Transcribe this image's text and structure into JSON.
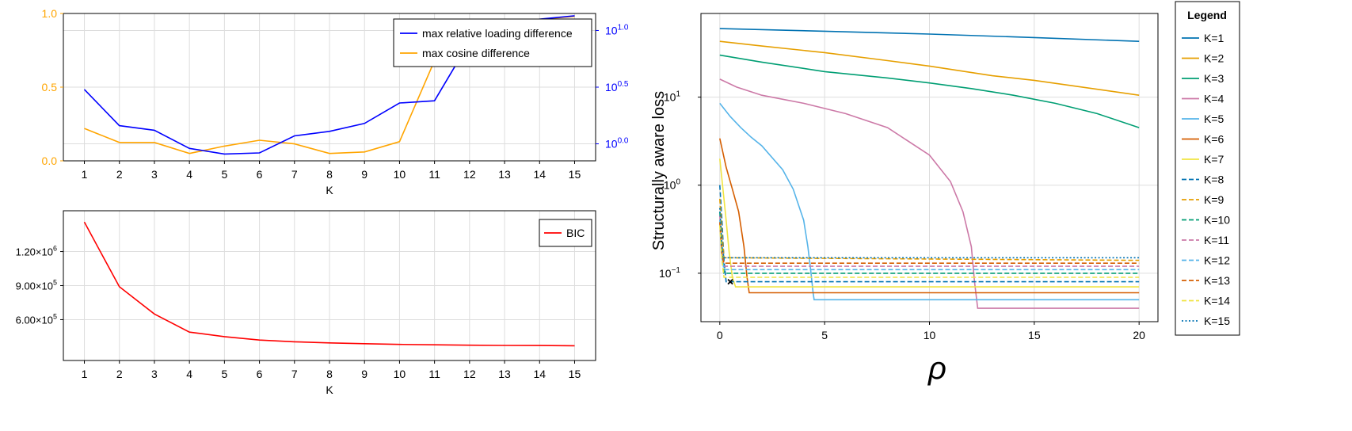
{
  "colors": {
    "loading": "#0000ff",
    "cosine": "#ffa500",
    "bic": "#ff0000",
    "grid": "#dddddd",
    "k_series": [
      "#0072b2",
      "#e69f00",
      "#009e73",
      "#cc79a7",
      "#56b4e9",
      "#d55e00",
      "#f0e442"
    ]
  },
  "chart_data": [
    {
      "type": "line",
      "xlabel": "K",
      "x": [
        1,
        2,
        3,
        4,
        5,
        6,
        7,
        8,
        9,
        10,
        11,
        12,
        13,
        14,
        15
      ],
      "xlim": [
        0.4,
        15.6
      ],
      "left_axis": {
        "ylim": [
          0,
          1.0
        ],
        "ticks": [
          0.0,
          0.5,
          1.0
        ],
        "tick_labels": [
          "0.0",
          "0.5",
          "1.0"
        ]
      },
      "right_axis": {
        "scale": "log10",
        "ylim_log10": [
          -0.15,
          1.15
        ],
        "tick_labels_base": [
          "10",
          "10",
          "10"
        ],
        "tick_labels_exp": [
          "0.0",
          "0.5",
          "1.0"
        ],
        "tick_values_log10": [
          0.0,
          0.5,
          1.0
        ]
      },
      "legend_placement": "top-right",
      "series": [
        {
          "name": "max relative loading difference",
          "axis": "right",
          "values_log10": [
            0.48,
            0.16,
            0.12,
            -0.04,
            -0.09,
            -0.08,
            0.07,
            0.11,
            0.18,
            0.36,
            0.38,
            0.9,
            1.05,
            1.1,
            1.13
          ]
        },
        {
          "name": "max cosine difference",
          "axis": "left",
          "values": [
            0.22,
            0.125,
            0.125,
            0.05,
            0.1,
            0.14,
            0.115,
            0.05,
            0.06,
            0.13,
            0.68,
            0.85,
            0.92,
            0.96,
            0.98
          ]
        }
      ]
    },
    {
      "type": "line",
      "xlabel": "K",
      "x": [
        1,
        2,
        3,
        4,
        5,
        6,
        7,
        8,
        9,
        10,
        11,
        12,
        13,
        14,
        15
      ],
      "xlim": [
        0.4,
        15.6
      ],
      "ylim": [
        240000,
        1560000
      ],
      "yticks": [
        600000,
        900000,
        1200000
      ],
      "ytick_mantissa": [
        "6.00",
        "9.00",
        "1.20"
      ],
      "ytick_base": [
        "×10",
        "×10",
        "×10"
      ],
      "ytick_exp": [
        "5",
        "5",
        "6"
      ],
      "legend_placement": "top-right",
      "series": [
        {
          "name": "BIC",
          "values": [
            1460000,
            890000,
            650000,
            490000,
            450000,
            420000,
            405000,
            395000,
            388000,
            382000,
            378000,
            375000,
            373000,
            372000,
            370000
          ]
        }
      ]
    },
    {
      "type": "line",
      "xlabel": "ρ",
      "ylabel": "Structurally aware loss",
      "xlim": [
        -0.9,
        20.9
      ],
      "x_ticks": [
        0,
        5,
        10,
        15,
        20
      ],
      "x_tick_labels": [
        "0",
        "5",
        "10",
        "15",
        "20"
      ],
      "y_scale": "log10",
      "ylim_log10": [
        -1.55,
        1.95
      ],
      "y_ticks_log10": [
        -1,
        0,
        1
      ],
      "y_tick_labels_base": [
        "10",
        "10",
        "10"
      ],
      "y_tick_labels_exp": [
        "−1",
        "0",
        "1"
      ],
      "legend_title": "Legend",
      "legend_placement": "outside-right",
      "marker": {
        "symbol": "x",
        "x": 0.5,
        "y": 0.08
      },
      "series": [
        {
          "name": "K=1",
          "style": "solid",
          "x": [
            0,
            5,
            10,
            15,
            20
          ],
          "y": [
            60,
            56,
            52,
            47.5,
            43
          ]
        },
        {
          "name": "K=2",
          "style": "solid",
          "x": [
            0,
            2,
            5,
            8,
            10,
            13,
            15,
            20
          ],
          "y": [
            43,
            38,
            32,
            26,
            22.5,
            17.5,
            15.5,
            10.5
          ]
        },
        {
          "name": "K=3",
          "style": "solid",
          "x": [
            0,
            2,
            5,
            8,
            10,
            12,
            14,
            16,
            18,
            20
          ],
          "y": [
            30,
            25,
            19.5,
            16.5,
            14.5,
            12.5,
            10.5,
            8.5,
            6.5,
            4.5
          ]
        },
        {
          "name": "K=4",
          "style": "solid",
          "x": [
            0,
            0.8,
            2,
            4,
            6,
            8,
            10,
            11,
            11.6,
            12,
            12.15,
            12.3,
            20
          ],
          "y": [
            16,
            13,
            10.5,
            8.5,
            6.5,
            4.5,
            2.2,
            1.1,
            0.5,
            0.2,
            0.08,
            0.04,
            0.04
          ]
        },
        {
          "name": "K=5",
          "style": "solid",
          "x": [
            0,
            0.5,
            1,
            1.5,
            2,
            3,
            3.5,
            4,
            4.2,
            4.35,
            4.45,
            4.5,
            20
          ],
          "y": [
            8.5,
            6,
            4.5,
            3.5,
            2.8,
            1.5,
            0.9,
            0.4,
            0.2,
            0.1,
            0.06,
            0.05,
            0.05
          ]
        },
        {
          "name": "K=6",
          "style": "solid",
          "x": [
            0,
            0.3,
            0.6,
            0.9,
            1.15,
            1.3,
            1.4,
            20
          ],
          "y": [
            3.4,
            1.6,
            0.9,
            0.5,
            0.2,
            0.09,
            0.06,
            0.06
          ]
        },
        {
          "name": "K=7",
          "style": "solid",
          "x": [
            0,
            0.15,
            0.3,
            0.45,
            0.6,
            0.75,
            20
          ],
          "y": [
            2.0,
            0.9,
            0.4,
            0.17,
            0.09,
            0.07,
            0.07
          ]
        },
        {
          "name": "K=8",
          "style": "dashed",
          "x": [
            0,
            0.1,
            0.2,
            0.3,
            20
          ],
          "y": [
            1.0,
            0.4,
            0.14,
            0.08,
            0.08
          ]
        },
        {
          "name": "K=9",
          "style": "dashed",
          "x": [
            0,
            0.1,
            0.2,
            20
          ],
          "y": [
            0.7,
            0.28,
            0.15,
            0.14
          ]
        },
        {
          "name": "K=10",
          "style": "dashed",
          "x": [
            0,
            0.1,
            0.2,
            20
          ],
          "y": [
            0.5,
            0.2,
            0.1,
            0.1
          ]
        },
        {
          "name": "K=11",
          "style": "dashed",
          "x": [
            0,
            0.1,
            0.2,
            20
          ],
          "y": [
            0.45,
            0.18,
            0.12,
            0.12
          ]
        },
        {
          "name": "K=12",
          "style": "dashed",
          "x": [
            0,
            0.1,
            0.2,
            20
          ],
          "y": [
            0.4,
            0.15,
            0.11,
            0.11
          ]
        },
        {
          "name": "K=13",
          "style": "dashed",
          "x": [
            0,
            0.1,
            0.2,
            20
          ],
          "y": [
            0.38,
            0.16,
            0.13,
            0.13
          ]
        },
        {
          "name": "K=14",
          "style": "dashed",
          "x": [
            0,
            0.1,
            0.2,
            20
          ],
          "y": [
            0.35,
            0.14,
            0.09,
            0.09
          ]
        },
        {
          "name": "K=15",
          "style": "dotted",
          "x": [
            0,
            0.1,
            0.2,
            20
          ],
          "y": [
            0.55,
            0.2,
            0.15,
            0.15
          ]
        }
      ]
    }
  ]
}
